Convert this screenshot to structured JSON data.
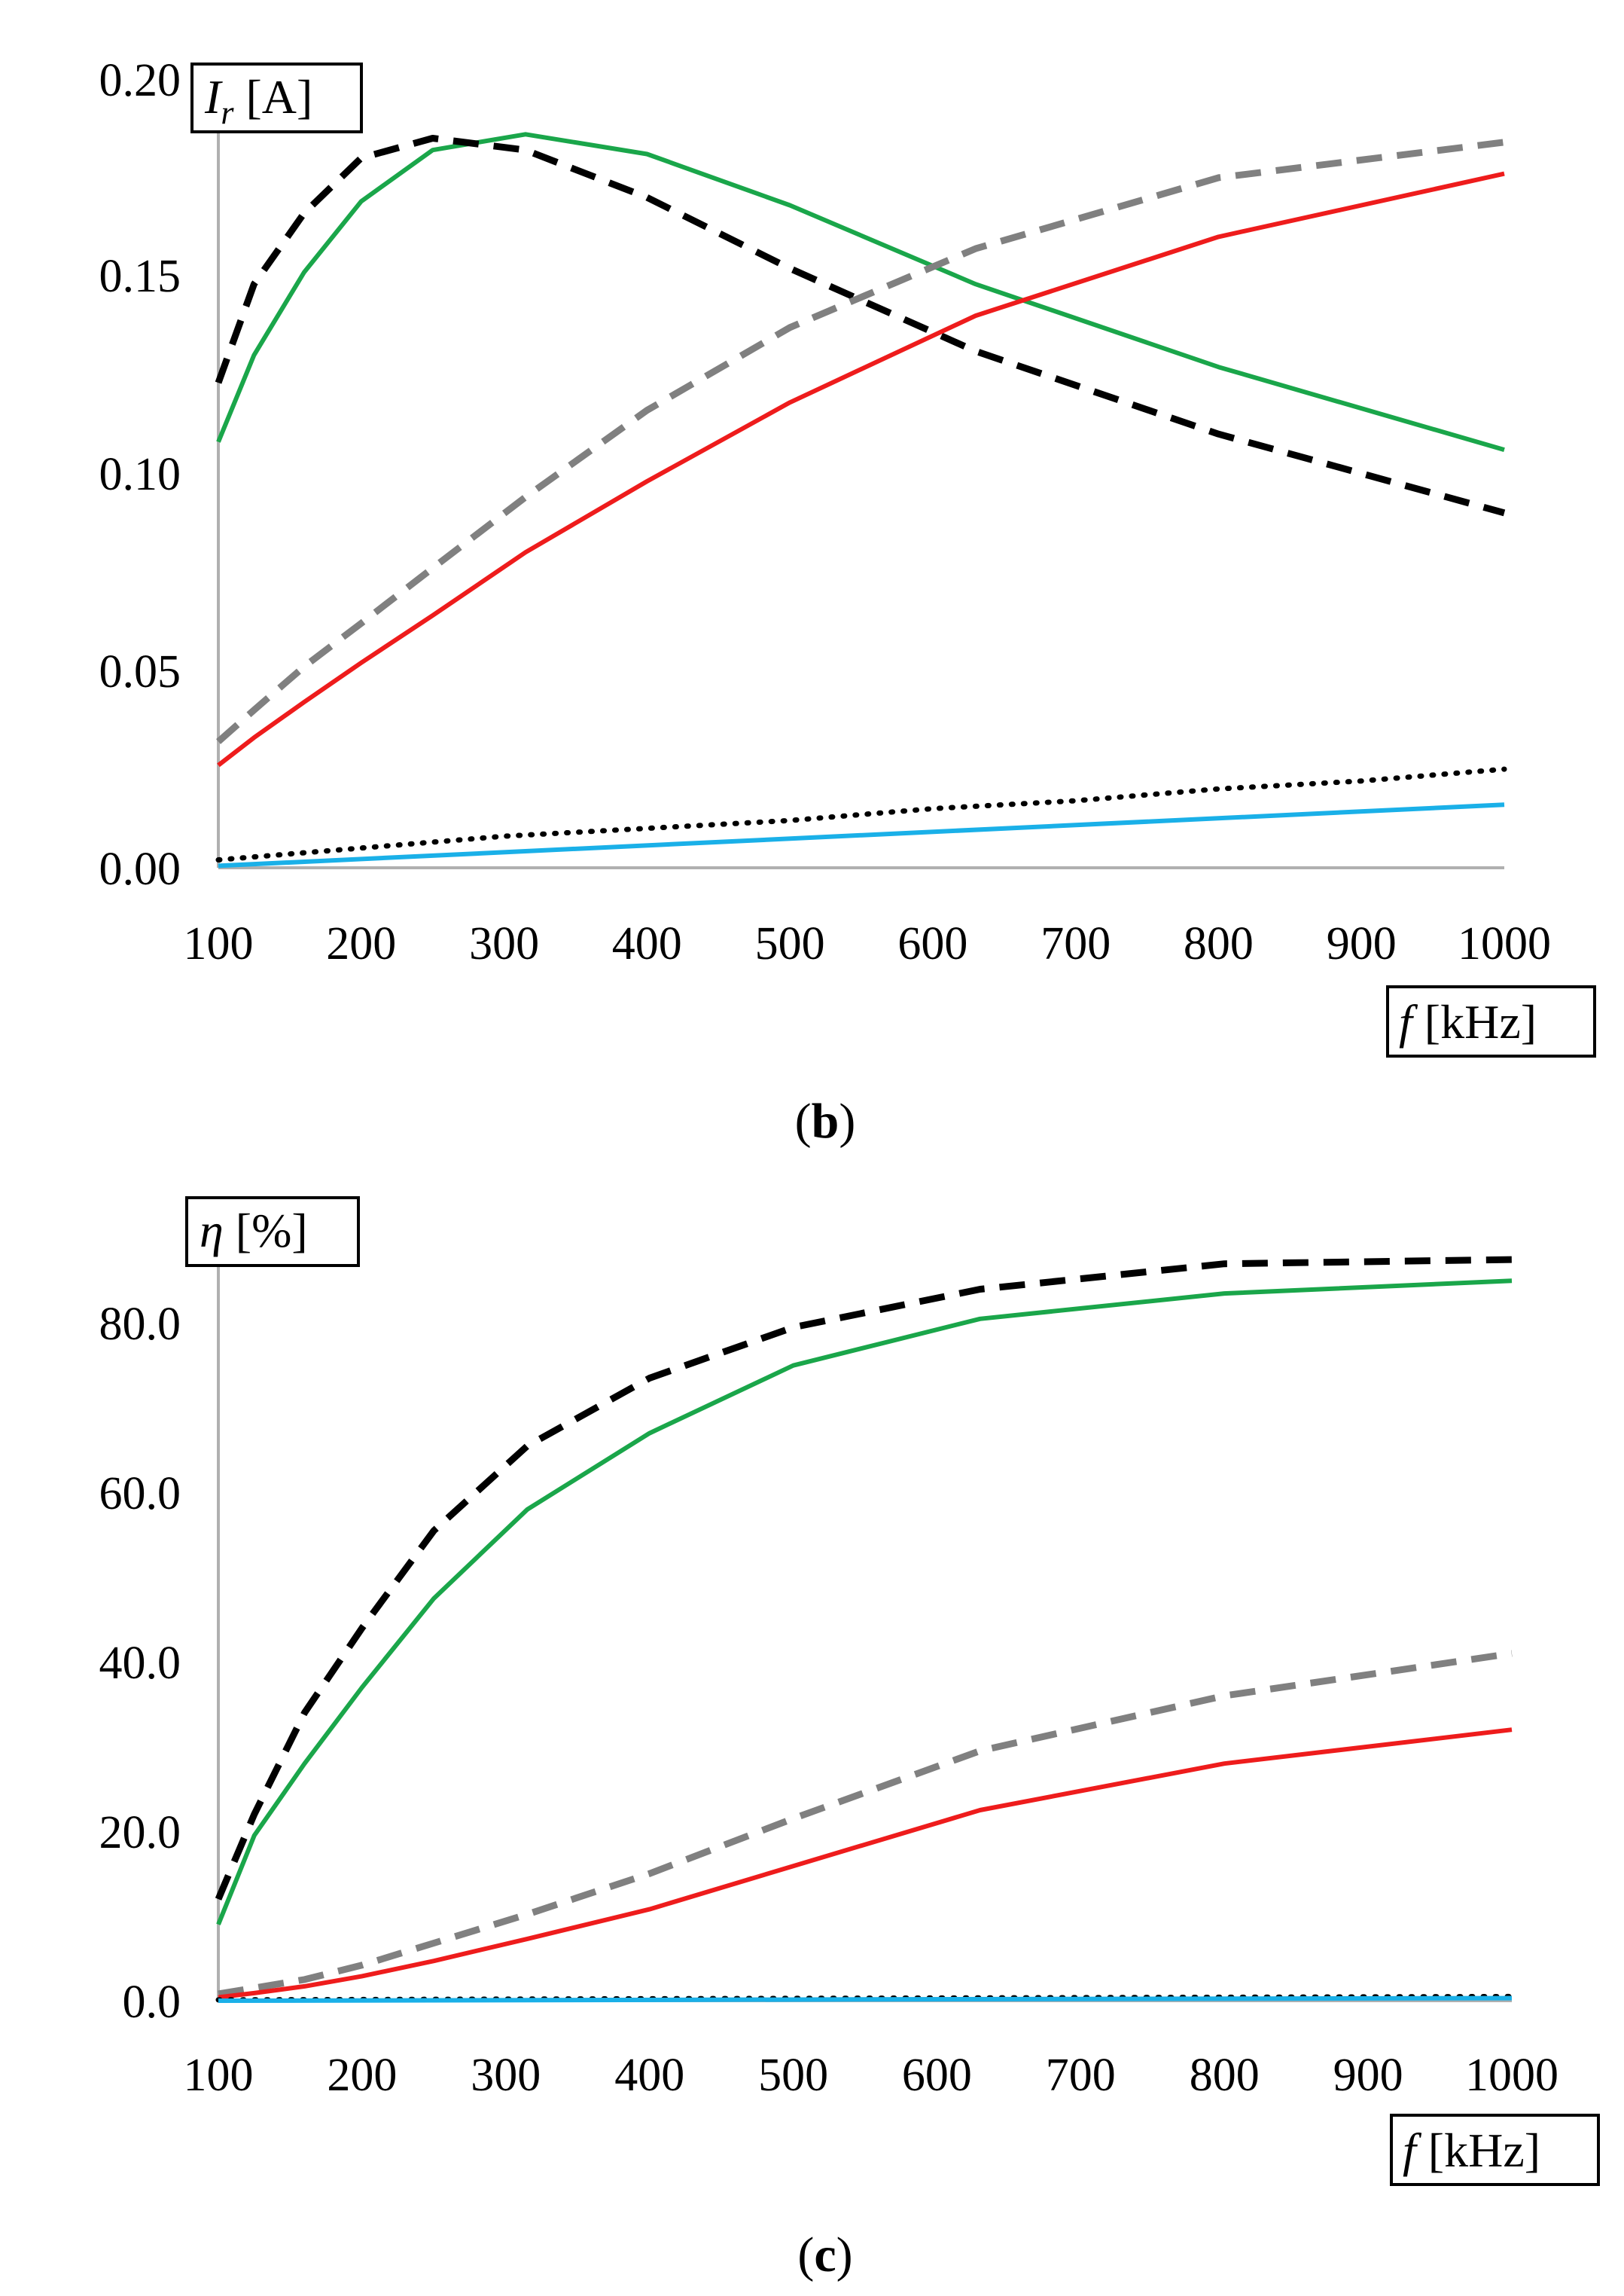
{
  "chart_data": [
    {
      "type": "line",
      "caption_letter": "b",
      "ylabel_symbol": "I",
      "ylabel_sub": "r",
      "ylabel_unit": " [A]",
      "xlabel_symbol": "f",
      "xlabel_unit": " [kHz]",
      "xlim": [
        100,
        1000
      ],
      "ylim": [
        0,
        0.2
      ],
      "x_ticks": [
        100,
        200,
        300,
        400,
        500,
        600,
        700,
        800,
        900,
        1000
      ],
      "y_ticks": [
        "0.00",
        "0.05",
        "0.10",
        "0.15",
        "0.20"
      ],
      "y_tick_values": [
        0,
        0.05,
        0.1,
        0.15,
        0.2
      ],
      "series": [
        {
          "name": "green",
          "color": "#1aa64a",
          "style": "solid",
          "x": [
            100,
            125,
            160,
            200,
            250,
            315,
            400,
            500,
            630,
            800,
            1000
          ],
          "y": [
            0.108,
            0.13,
            0.151,
            0.169,
            0.182,
            0.186,
            0.181,
            0.168,
            0.148,
            0.127,
            0.106
          ]
        },
        {
          "name": "black-dashed",
          "color": "#000000",
          "style": "dashed",
          "x": [
            100,
            125,
            160,
            200,
            250,
            315,
            400,
            500,
            630,
            800,
            1000
          ],
          "y": [
            0.123,
            0.148,
            0.166,
            0.18,
            0.185,
            0.182,
            0.17,
            0.152,
            0.131,
            0.11,
            0.09
          ]
        },
        {
          "name": "gray-dashed",
          "color": "#808080",
          "style": "dashed",
          "x": [
            100,
            125,
            160,
            200,
            250,
            315,
            400,
            500,
            630,
            800,
            1000
          ],
          "y": [
            0.032,
            0.04,
            0.051,
            0.062,
            0.076,
            0.094,
            0.116,
            0.137,
            0.157,
            0.175,
            0.184
          ]
        },
        {
          "name": "red",
          "color": "#ee1c1c",
          "style": "solid",
          "x": [
            100,
            125,
            160,
            200,
            250,
            315,
            400,
            500,
            630,
            800,
            1000
          ],
          "y": [
            0.026,
            0.033,
            0.042,
            0.052,
            0.064,
            0.08,
            0.098,
            0.118,
            0.14,
            0.16,
            0.176
          ]
        },
        {
          "name": "black-dotted",
          "color": "#000000",
          "style": "dotted",
          "x": [
            100,
            200,
            300,
            400,
            500,
            600,
            700,
            800,
            900,
            1000
          ],
          "y": [
            0.002,
            0.005,
            0.008,
            0.01,
            0.012,
            0.015,
            0.017,
            0.02,
            0.022,
            0.025
          ]
        },
        {
          "name": "cyan",
          "color": "#1ab0e8",
          "style": "solid",
          "x": [
            100,
            1000
          ],
          "y": [
            0.0005,
            0.016
          ]
        }
      ]
    },
    {
      "type": "line",
      "caption_letter": "c",
      "ylabel_symbol": "η",
      "ylabel_sub": "",
      "ylabel_unit": " [%]",
      "xlabel_symbol": "f",
      "xlabel_unit": " [kHz]",
      "xlim": [
        100,
        1000
      ],
      "ylim": [
        0,
        90
      ],
      "x_ticks": [
        100,
        200,
        300,
        400,
        500,
        600,
        700,
        800,
        900,
        1000
      ],
      "y_ticks": [
        "0.0",
        "20.0",
        "40.0",
        "60.0",
        "80.0"
      ],
      "y_tick_values": [
        0,
        20,
        40,
        60,
        80
      ],
      "series": [
        {
          "name": "black-dashed",
          "color": "#000000",
          "style": "dashed",
          "x": [
            100,
            125,
            160,
            200,
            250,
            315,
            400,
            500,
            630,
            800,
            1000
          ],
          "y": [
            12.0,
            22.0,
            34.0,
            44.0,
            55.5,
            65.5,
            73.5,
            79.5,
            84.0,
            87.0,
            87.5
          ]
        },
        {
          "name": "green",
          "color": "#1aa64a",
          "style": "solid",
          "x": [
            100,
            125,
            160,
            200,
            250,
            315,
            400,
            500,
            630,
            800,
            1000
          ],
          "y": [
            9.0,
            19.5,
            28.0,
            37.0,
            47.5,
            58.0,
            67.0,
            75.0,
            80.5,
            83.5,
            85.0
          ]
        },
        {
          "name": "gray-dashed",
          "color": "#808080",
          "style": "dashed",
          "x": [
            100,
            125,
            160,
            200,
            250,
            315,
            400,
            500,
            630,
            800,
            1000
          ],
          "y": [
            0.8,
            1.5,
            2.5,
            4.2,
            6.8,
            10.2,
            15.0,
            21.5,
            29.5,
            36.0,
            41.0
          ]
        },
        {
          "name": "red",
          "color": "#ee1c1c",
          "style": "solid",
          "x": [
            100,
            125,
            160,
            200,
            250,
            315,
            400,
            500,
            630,
            800,
            1000
          ],
          "y": [
            0.4,
            0.9,
            1.7,
            2.9,
            4.7,
            7.3,
            10.8,
            15.9,
            22.5,
            28.0,
            32.0
          ]
        },
        {
          "name": "black-dotted",
          "color": "#000000",
          "style": "dotted",
          "x": [
            100,
            1000
          ],
          "y": [
            0.1,
            0.5
          ]
        },
        {
          "name": "cyan",
          "color": "#1ab0e8",
          "style": "solid",
          "x": [
            100,
            1000
          ],
          "y": [
            0.0,
            0.3
          ]
        }
      ]
    }
  ]
}
